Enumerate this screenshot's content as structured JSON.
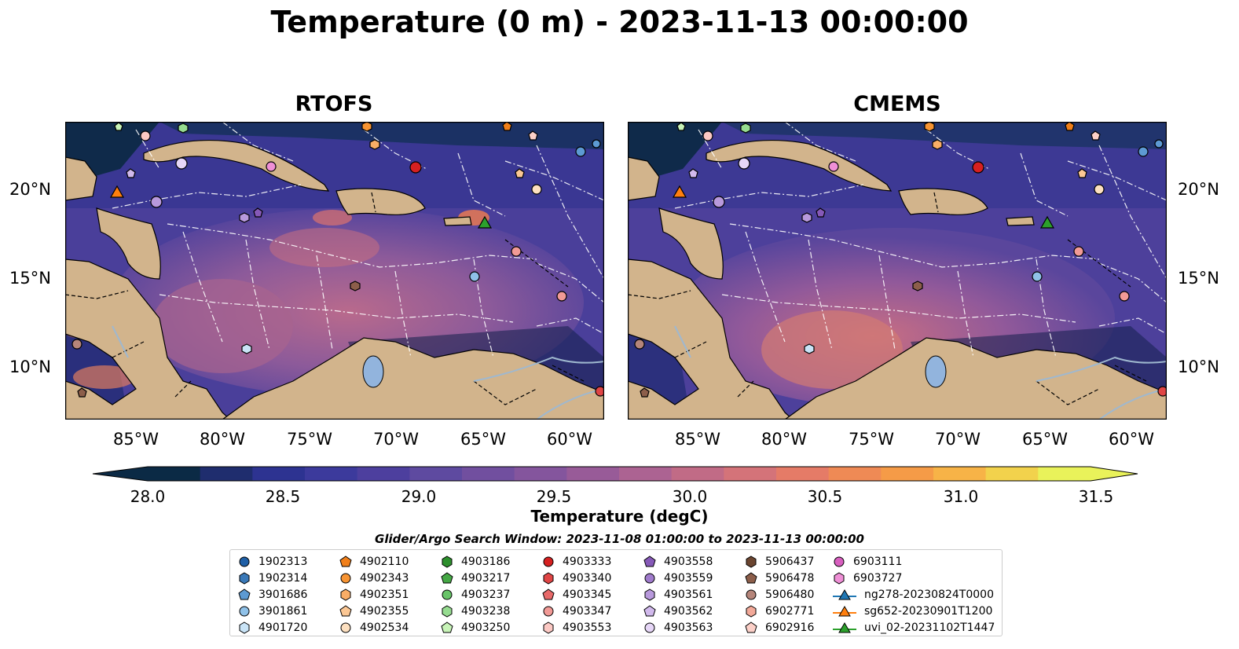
{
  "title": "Temperature (0 m) - 2023-11-13 00:00:00",
  "panels": [
    {
      "title": "RTOFS",
      "x_ticks": [
        "85°W",
        "80°W",
        "75°W",
        "70°W",
        "65°W",
        "60°W"
      ],
      "y_ticks": [
        "20°N",
        "15°N",
        "10°N"
      ]
    },
    {
      "title": "CMEMS",
      "x_ticks": [
        "85°W",
        "80°W",
        "75°W",
        "70°W",
        "65°W",
        "60°W"
      ],
      "y_ticks": [
        "20°N",
        "15°N",
        "10°N"
      ]
    }
  ],
  "colorbar": {
    "label": "Temperature (degC)",
    "ticks": [
      "28.0",
      "28.5",
      "29.0",
      "29.5",
      "30.0",
      "30.5",
      "31.0",
      "31.5"
    ],
    "colors": [
      "#0b2a45",
      "#1f2d6e",
      "#2d3391",
      "#3c3a9c",
      "#4d3f9e",
      "#5e4aa0",
      "#714f9f",
      "#84559d",
      "#985b98",
      "#ac6392",
      "#c16b86",
      "#d47379",
      "#e57b67",
      "#ef8a55",
      "#f59b47",
      "#f7b347",
      "#f2d24c",
      "#e9f25a"
    ],
    "min_color": "#0b2a45",
    "max_color": "#e9f25a"
  },
  "search_window": "Glider/Argo Search Window: 2023-11-08 01:00:00 to 2023-11-13 00:00:00",
  "legend": {
    "columns": [
      [
        {
          "label": "1902313",
          "shape": "circle",
          "color": "#1f5fa6"
        },
        {
          "label": "1902314",
          "shape": "hexagon",
          "color": "#3a79b8"
        },
        {
          "label": "3901686",
          "shape": "pentagon",
          "color": "#5d9ad3"
        },
        {
          "label": "3901861",
          "shape": "circle",
          "color": "#8fc1e8"
        },
        {
          "label": "4901720",
          "shape": "hexagon",
          "color": "#c9e4f7"
        }
      ],
      [
        {
          "label": "4902110",
          "shape": "pentagon",
          "color": "#f07f1a"
        },
        {
          "label": "4902343",
          "shape": "circle",
          "color": "#f79433"
        },
        {
          "label": "4902351",
          "shape": "hexagon",
          "color": "#f9ad66"
        },
        {
          "label": "4902355",
          "shape": "pentagon",
          "color": "#fbc794"
        },
        {
          "label": "4902534",
          "shape": "circle",
          "color": "#fde0c0"
        }
      ],
      [
        {
          "label": "4903186",
          "shape": "hexagon",
          "color": "#2d8f2d"
        },
        {
          "label": "4903217",
          "shape": "pentagon",
          "color": "#45a845"
        },
        {
          "label": "4903237",
          "shape": "circle",
          "color": "#68c468"
        },
        {
          "label": "4903238",
          "shape": "hexagon",
          "color": "#96dc90"
        },
        {
          "label": "4903250",
          "shape": "pentagon",
          "color": "#c8f4b8"
        }
      ],
      [
        {
          "label": "4903333",
          "shape": "circle",
          "color": "#d62020"
        },
        {
          "label": "4903340",
          "shape": "hexagon",
          "color": "#e04545"
        },
        {
          "label": "4903345",
          "shape": "pentagon",
          "color": "#e86a6a"
        },
        {
          "label": "4903347",
          "shape": "circle",
          "color": "#f29a96"
        },
        {
          "label": "4903553",
          "shape": "hexagon",
          "color": "#fcc9c4"
        }
      ],
      [
        {
          "label": "4903558",
          "shape": "pentagon",
          "color": "#8659b8"
        },
        {
          "label": "4903559",
          "shape": "circle",
          "color": "#a07bcc"
        },
        {
          "label": "4903561",
          "shape": "hexagon",
          "color": "#b899dc"
        },
        {
          "label": "4903562",
          "shape": "pentagon",
          "color": "#d1b9ec"
        },
        {
          "label": "4903563",
          "shape": "circle",
          "color": "#e6d6f7"
        }
      ],
      [
        {
          "label": "5906437",
          "shape": "hexagon",
          "color": "#6b4530"
        },
        {
          "label": "5906478",
          "shape": "pentagon",
          "color": "#8c5e4a"
        },
        {
          "label": "5906480",
          "shape": "circle",
          "color": "#b5857a"
        },
        {
          "label": "6902771",
          "shape": "hexagon",
          "color": "#f2a999"
        },
        {
          "label": "6902916",
          "shape": "pentagon",
          "color": "#fcd0c8"
        }
      ],
      [
        {
          "label": "6903111",
          "shape": "circle",
          "color": "#d85fbf"
        },
        {
          "label": "6903727",
          "shape": "hexagon",
          "color": "#ef8fd6"
        },
        {
          "label": "ng278-20230824T0000",
          "shape": "triangle-line",
          "color": "#1f77b4"
        },
        {
          "label": "sg652-20230901T1200",
          "shape": "triangle-line",
          "color": "#ff7f0e"
        },
        {
          "label": "uvi_02-20231102T1447",
          "shape": "triangle-line",
          "color": "#2ca02c"
        }
      ]
    ]
  },
  "map_colors": {
    "land": "#d2b48c",
    "ocean_warm": "#9c5e96",
    "ocean_mid": "#5c479c",
    "ocean_cool": "#2f3487",
    "ocean_deep": "#0c2340",
    "river": "#9fb8cf",
    "lake": "#92b4dd"
  }
}
